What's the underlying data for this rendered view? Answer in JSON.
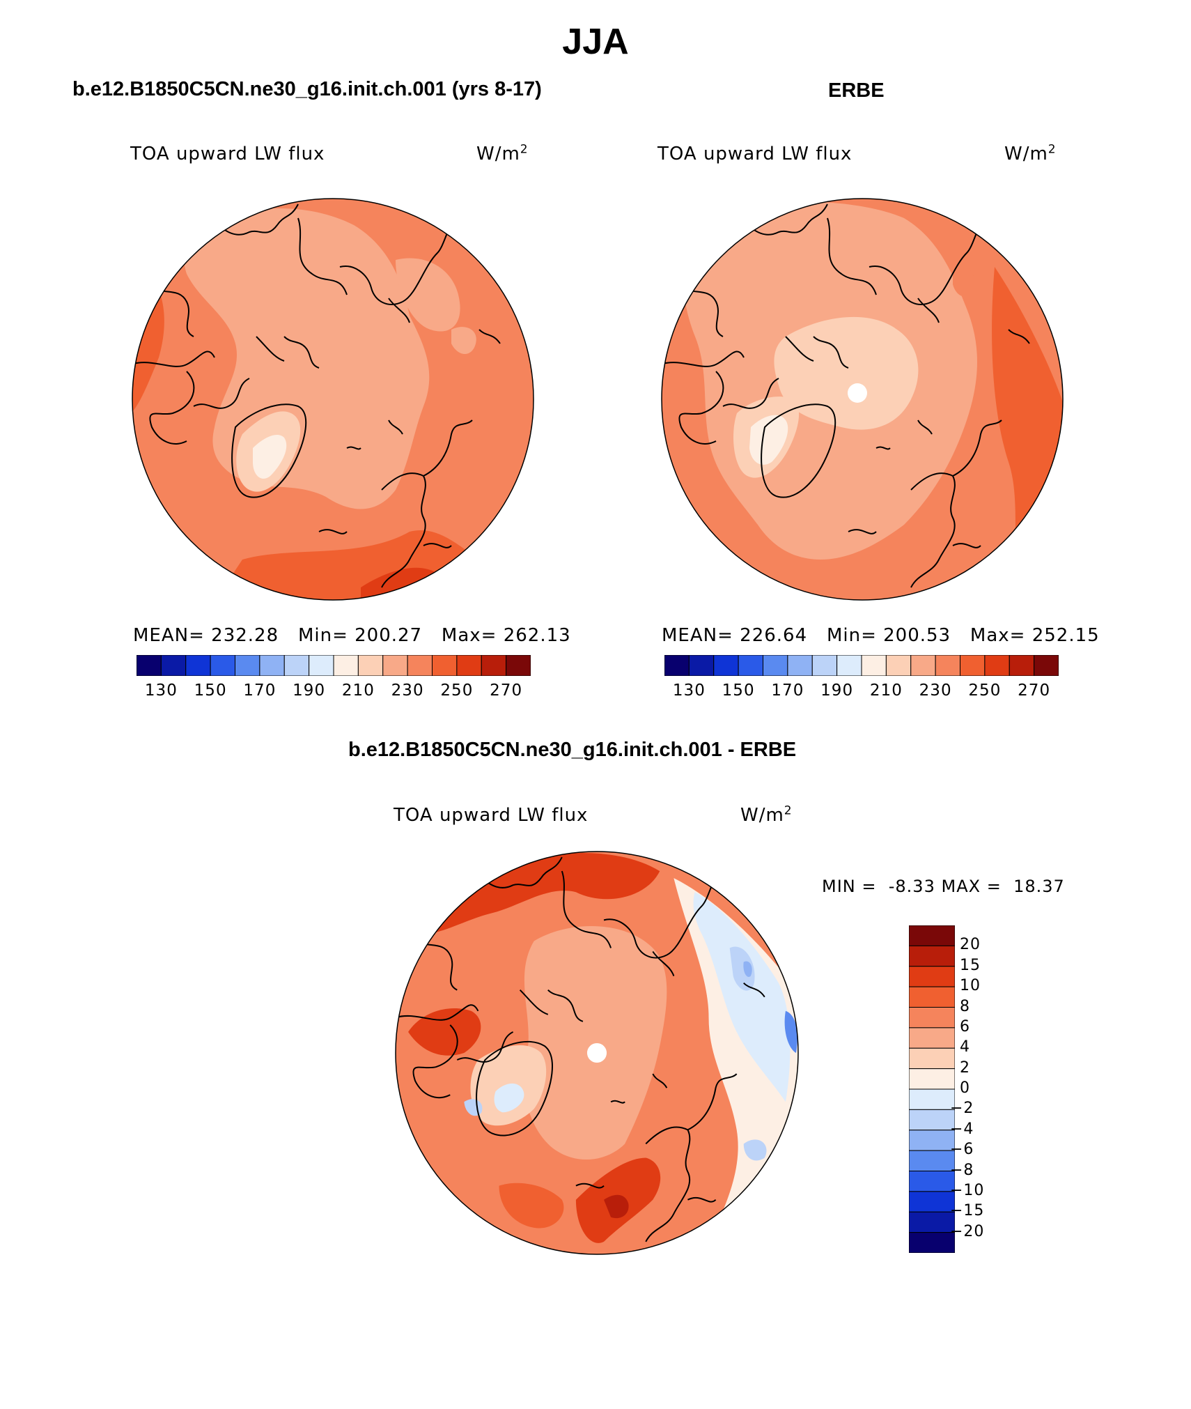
{
  "title": "JJA",
  "panels": [
    {
      "header": "b.e12.B1850C5CN.ne30_g16.init.ch.001 (yrs 8-17)",
      "variable": "TOA upward LW flux",
      "units_base": "W/m",
      "units_exp": "2",
      "stats": {
        "mean_label": "MEAN=",
        "mean": "232.28",
        "min_label": "Min=",
        "min": "200.27",
        "max_label": "Max=",
        "max": "262.13"
      },
      "pole_missing": false
    },
    {
      "header": "ERBE",
      "variable": "TOA upward LW flux",
      "units_base": "W/m",
      "units_exp": "2",
      "stats": {
        "mean_label": "MEAN=",
        "mean": "226.64",
        "min_label": "Min=",
        "min": "200.53",
        "max_label": "Max=",
        "max": "252.15"
      },
      "pole_missing": true
    }
  ],
  "abs_colorbar": {
    "colors": [
      "#08006e",
      "#0a1aa6",
      "#0f34d6",
      "#2a5ae8",
      "#5a8af0",
      "#8fb2f4",
      "#bcd3f8",
      "#ddecfc",
      "#fdefe4",
      "#fcd0b6",
      "#f8a988",
      "#f5845c",
      "#f06030",
      "#e03c14",
      "#b81e0a",
      "#7a0808"
    ],
    "labels": [
      "130",
      "150",
      "170",
      "190",
      "210",
      "230",
      "250",
      "270"
    ]
  },
  "difference": {
    "header": "b.e12.B1850C5CN.ne30_g16.init.ch.001 - ERBE",
    "variable": "TOA upward LW flux",
    "units_base": "W/m",
    "units_exp": "2",
    "min_label": "MIN =",
    "min": "-8.33",
    "max_label": "MAX =",
    "max": "18.37",
    "pole_missing": true
  },
  "diff_colorbar": {
    "colors_top_to_bottom": [
      "#7a0808",
      "#b81e0a",
      "#e03c14",
      "#f06030",
      "#f5845c",
      "#f8a988",
      "#fcd0b6",
      "#fdefe4",
      "#ddecfc",
      "#bcd3f8",
      "#8fb2f4",
      "#5a8af0",
      "#2a5ae8",
      "#0f34d6",
      "#0a1aa6",
      "#08006e"
    ],
    "labels": [
      "20",
      "15",
      "10",
      "8",
      "6",
      "4",
      "2",
      "0",
      "−2",
      "−4",
      "−6",
      "−8",
      "−10",
      "−15",
      "−20"
    ]
  }
}
